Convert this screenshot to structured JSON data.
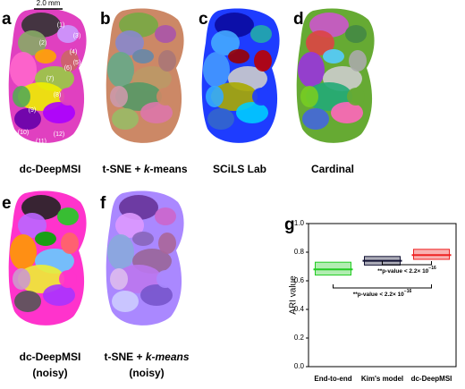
{
  "scale_bar": "2.0 mm",
  "panels": [
    {
      "letter": "a",
      "caption": [
        "dc-DeepMSI"
      ]
    },
    {
      "letter": "b",
      "caption": [
        "t-SNE + ",
        "k",
        "-means"
      ]
    },
    {
      "letter": "c",
      "caption": [
        "SCiLS Lab"
      ]
    },
    {
      "letter": "d",
      "caption": [
        "Cardinal"
      ]
    },
    {
      "letter": "e",
      "caption": [
        "dc-DeepMSI",
        "(noisy)"
      ]
    },
    {
      "letter": "f",
      "caption": [
        "t-SNE + ",
        "k-means",
        "(noisy)"
      ]
    },
    {
      "letter": "g"
    }
  ],
  "region_labels": [
    "(1)",
    "(2)",
    "(3)",
    "(4)",
    "(5)",
    "(6)",
    "(7)",
    "(8)",
    "(9)",
    "(10)",
    "(11)",
    "(12)"
  ],
  "chart_data": {
    "type": "box",
    "ylabel": "ARI value",
    "categories": [
      "End-to-end",
      "Kim's model",
      "dc-DeepMSI"
    ],
    "values": [
      0.68,
      0.74,
      0.78
    ],
    "low": [
      0.64,
      0.71,
      0.75
    ],
    "high": [
      0.73,
      0.77,
      0.82
    ],
    "colors": [
      "#22cc22",
      "#111133",
      "#ee2222"
    ],
    "ylim": [
      0,
      1.0
    ],
    "yticks": [
      {
        "value": 0,
        "label": "0.0"
      },
      {
        "value": 0.2,
        "label": "0.2"
      },
      {
        "value": 0.4,
        "label": "0.4"
      },
      {
        "value": 0.6,
        "label": "0.6"
      },
      {
        "value": 0.8,
        "label": "0.8"
      },
      {
        "value": 1.0,
        "label": "1.0"
      }
    ],
    "annotations": [
      {
        "text": "**p-value < 2.2× 10",
        "exponent": "−16"
      },
      {
        "text": "**p-value < 2.2× 10",
        "exponent": "−16"
      }
    ]
  }
}
